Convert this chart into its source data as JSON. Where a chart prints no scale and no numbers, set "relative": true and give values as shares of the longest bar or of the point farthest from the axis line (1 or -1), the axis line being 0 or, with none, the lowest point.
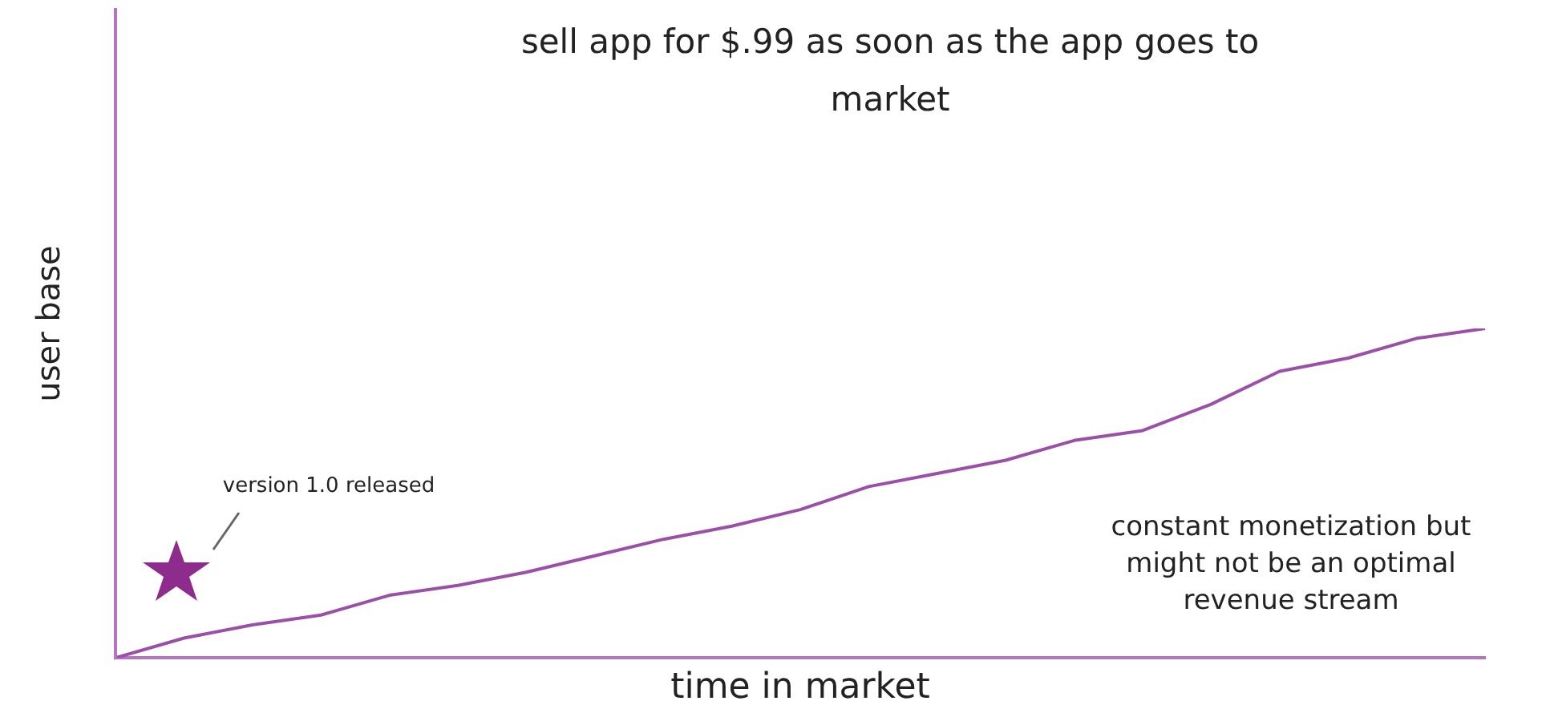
{
  "chart_data": {
    "type": "line",
    "title": "sell app for $.99 as soon as the app goes to market",
    "xlabel": "time in market",
    "ylabel": "user base",
    "relative": true,
    "legend": false,
    "grid": false,
    "marker": "none",
    "line_style": "solid",
    "categories": [
      null,
      null,
      null,
      null,
      null,
      null,
      null,
      null,
      null,
      null,
      null,
      null,
      null,
      null,
      null,
      null,
      null,
      null,
      null,
      null,
      null
    ],
    "series": [
      {
        "color": "#9b4fa8",
        "values": [
          0,
          0.06,
          0.1,
          0.13,
          0.19,
          0.22,
          0.26,
          0.31,
          0.36,
          0.4,
          0.45,
          0.52,
          0.56,
          0.6,
          0.66,
          0.69,
          0.77,
          0.87,
          0.91,
          0.97,
          1
        ]
      }
    ],
    "annotations": [
      "version 1.0 released",
      "constant monetization but might not be an optimal revenue stream"
    ]
  }
}
